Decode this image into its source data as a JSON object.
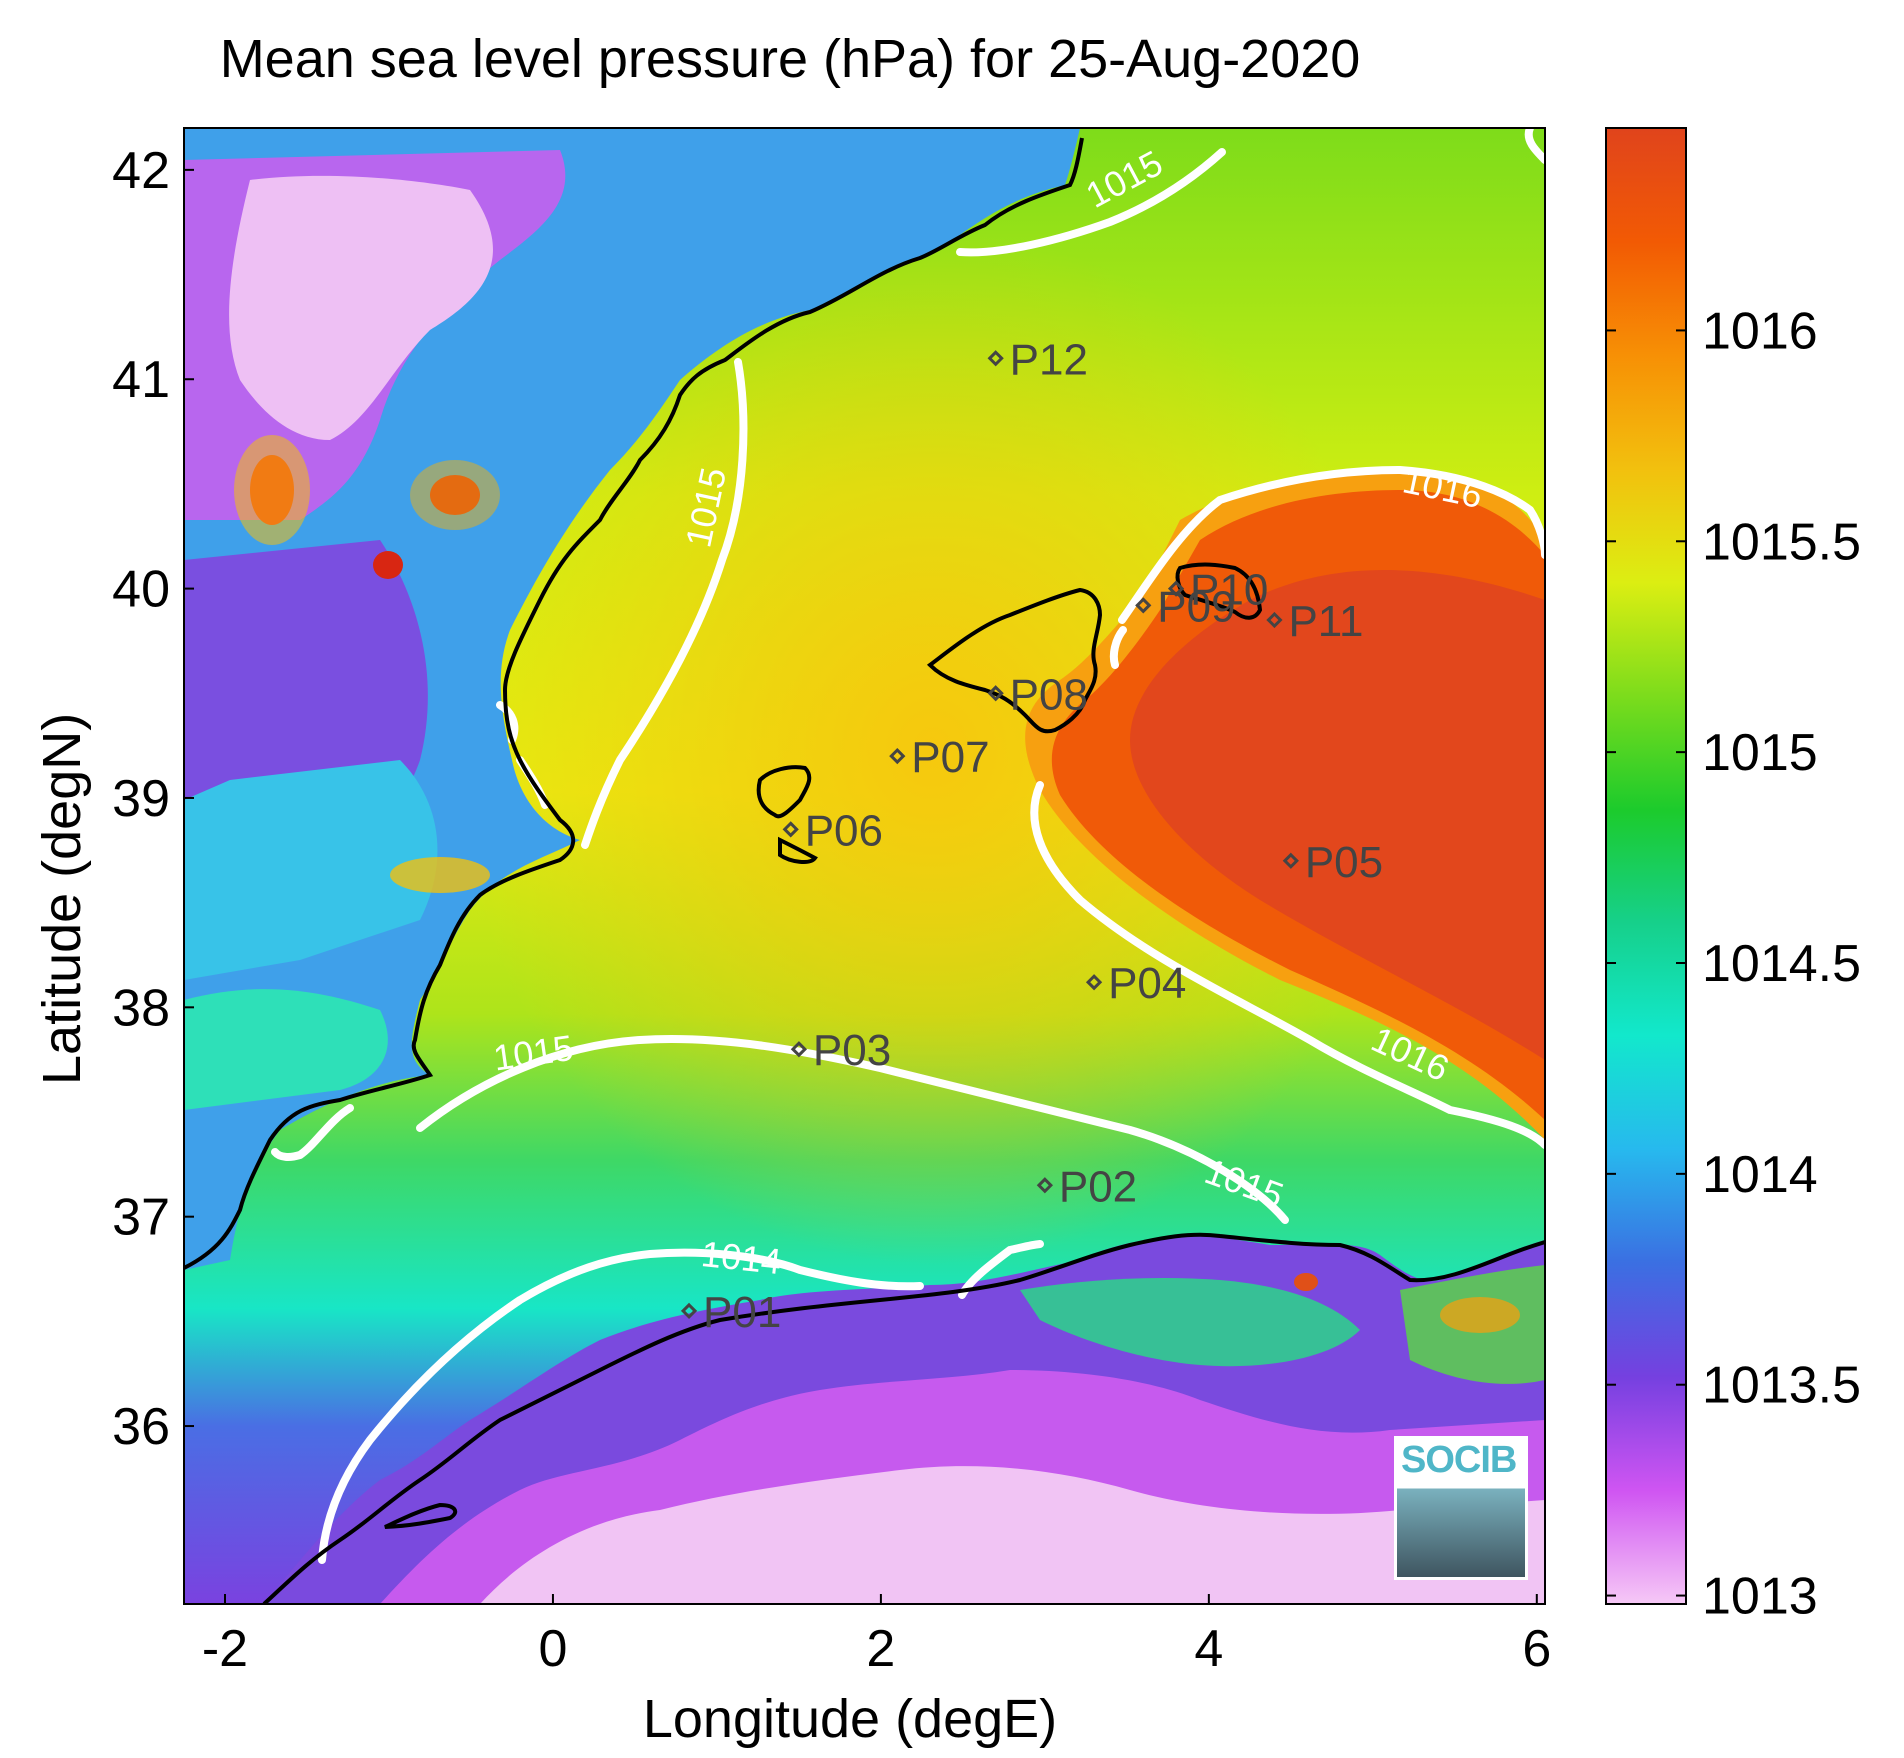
{
  "title": "Mean sea level pressure (hPa) for 25-Aug-2020",
  "x_axis": {
    "label": "Longitude (degE)",
    "ticks": [
      "-2",
      "0",
      "2",
      "4",
      "6"
    ],
    "range": [
      -2.25,
      6.05
    ]
  },
  "y_axis": {
    "label": "Latitude (degN)",
    "ticks": [
      "36",
      "37",
      "38",
      "39",
      "40",
      "41",
      "42"
    ],
    "range": [
      35.15,
      42.2
    ]
  },
  "colorbar": {
    "ticks": [
      "1013",
      "1013.5",
      "1014",
      "1014.5",
      "1015",
      "1015.5",
      "1016"
    ],
    "range": [
      1012.98,
      1016.48
    ],
    "colors": [
      "#f6c8f6",
      "#cf55f2",
      "#7540e0",
      "#3b6fe2",
      "#27b9ee",
      "#12e8cc",
      "#16d08a",
      "#1ccb2c",
      "#7cdc1c",
      "#dcee12",
      "#f2c00e",
      "#f79005",
      "#f25a04",
      "#e0441c"
    ]
  },
  "contour_labels": [
    "1014",
    "1015",
    "1015",
    "1015",
    "1015",
    "1016",
    "1016"
  ],
  "points": [
    {
      "name": "P01",
      "lon": 0.83,
      "lat": 36.55
    },
    {
      "name": "P02",
      "lon": 3.0,
      "lat": 37.15
    },
    {
      "name": "P03",
      "lon": 1.5,
      "lat": 37.8
    },
    {
      "name": "P04",
      "lon": 3.3,
      "lat": 38.12
    },
    {
      "name": "P05",
      "lon": 4.5,
      "lat": 38.7
    },
    {
      "name": "P06",
      "lon": 1.45,
      "lat": 38.85
    },
    {
      "name": "P07",
      "lon": 2.1,
      "lat": 39.2
    },
    {
      "name": "P08",
      "lon": 2.7,
      "lat": 39.5
    },
    {
      "name": "P09",
      "lon": 3.6,
      "lat": 39.92
    },
    {
      "name": "P10",
      "lon": 3.8,
      "lat": 40.0
    },
    {
      "name": "P11",
      "lon": 4.4,
      "lat": 39.85
    },
    {
      "name": "P12",
      "lon": 2.7,
      "lat": 41.1
    }
  ],
  "logo_text": "SOCIB"
}
